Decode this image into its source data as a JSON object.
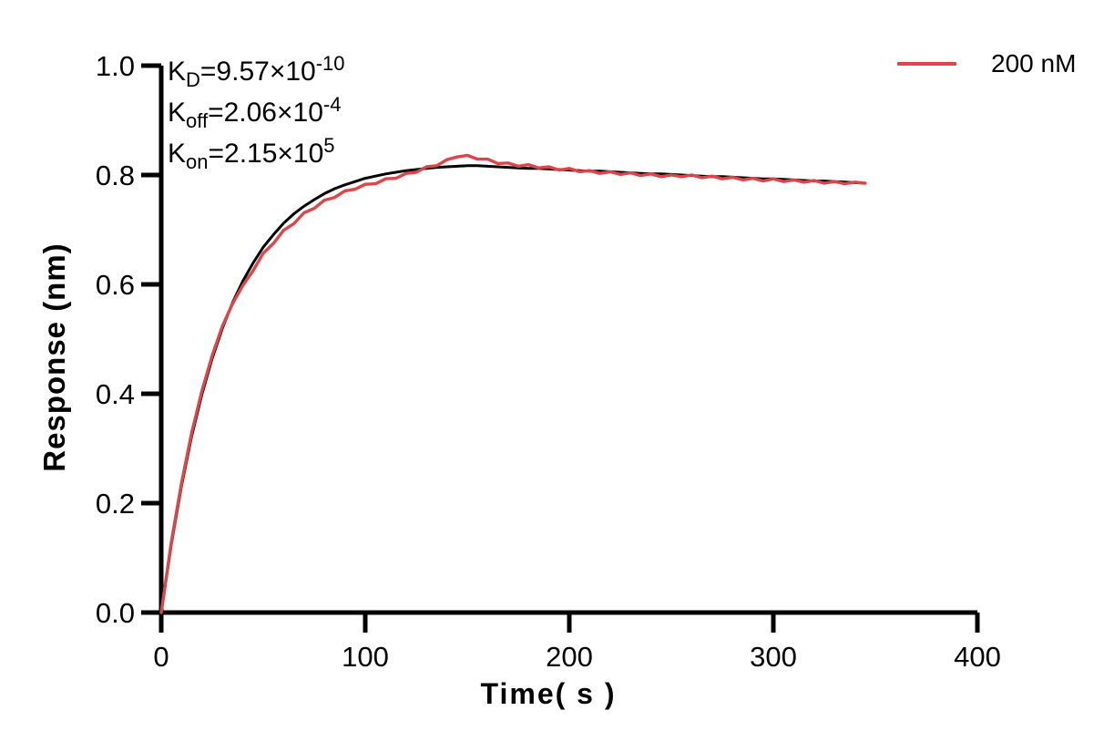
{
  "canvas": {
    "background": "#FFFFFF",
    "axis_color": "#000000"
  },
  "chart_data": {
    "type": "line",
    "title": "",
    "xlabel": "Time( s )",
    "ylabel": "Response (nm)",
    "xlim": [
      0,
      400
    ],
    "ylim": [
      0.0,
      1.0
    ],
    "x_ticks": [
      0,
      100,
      200,
      300,
      400
    ],
    "x_tick_labels": [
      "0",
      "100",
      "200",
      "300",
      "400"
    ],
    "y_ticks": [
      0.0,
      0.2,
      0.4,
      0.6,
      0.8,
      1.0
    ],
    "y_tick_labels": [
      "0.0",
      "0.2",
      "0.4",
      "0.6",
      "0.8",
      "1.0"
    ],
    "grid": false,
    "legend_position": "top-right",
    "annotations": {
      "kd": {
        "base": "K",
        "sub": "D",
        "eq": "=9.57×10",
        "sup": "-10"
      },
      "koff": {
        "base": "K",
        "sub": "off",
        "eq": "=2.06×10",
        "sup": "-4"
      },
      "kon": {
        "base": "K",
        "sub": "on",
        "eq": "=2.15×10",
        "sup": "5"
      }
    },
    "annotation_lines": [
      "KD=9.57×10-10",
      "Koff=2.06×10-4",
      "Kon=2.15×105"
    ],
    "series": [
      {
        "name": "Fitted curve",
        "role": "fit",
        "color": "#000000",
        "in_legend": false,
        "points": [
          [
            0,
            0
          ],
          [
            5,
            0.126
          ],
          [
            10,
            0.233
          ],
          [
            15,
            0.324
          ],
          [
            20,
            0.4
          ],
          [
            25,
            0.465
          ],
          [
            30,
            0.52
          ],
          [
            35,
            0.567
          ],
          [
            40,
            0.606
          ],
          [
            45,
            0.639
          ],
          [
            50,
            0.668
          ],
          [
            55,
            0.691
          ],
          [
            60,
            0.712
          ],
          [
            65,
            0.729
          ],
          [
            70,
            0.743
          ],
          [
            75,
            0.755
          ],
          [
            80,
            0.766
          ],
          [
            85,
            0.775
          ],
          [
            90,
            0.782
          ],
          [
            95,
            0.788
          ],
          [
            100,
            0.794
          ],
          [
            105,
            0.798
          ],
          [
            110,
            0.802
          ],
          [
            115,
            0.805
          ],
          [
            120,
            0.808
          ],
          [
            125,
            0.81
          ],
          [
            130,
            0.812
          ],
          [
            135,
            0.814
          ],
          [
            140,
            0.815
          ],
          [
            145,
            0.816
          ],
          [
            150,
            0.817
          ],
          [
            155,
            0.817
          ],
          [
            160,
            0.816
          ],
          [
            165,
            0.815
          ],
          [
            170,
            0.814
          ],
          [
            175,
            0.813
          ],
          [
            180,
            0.812
          ],
          [
            185,
            0.812
          ],
          [
            190,
            0.811
          ],
          [
            195,
            0.81
          ],
          [
            200,
            0.809
          ],
          [
            205,
            0.808
          ],
          [
            210,
            0.807
          ],
          [
            215,
            0.807
          ],
          [
            220,
            0.806
          ],
          [
            225,
            0.805
          ],
          [
            230,
            0.804
          ],
          [
            235,
            0.803
          ],
          [
            240,
            0.802
          ],
          [
            245,
            0.802
          ],
          [
            250,
            0.801
          ],
          [
            255,
            0.8
          ],
          [
            260,
            0.799
          ],
          [
            265,
            0.798
          ],
          [
            270,
            0.797
          ],
          [
            275,
            0.797
          ],
          [
            280,
            0.796
          ],
          [
            285,
            0.795
          ],
          [
            290,
            0.794
          ],
          [
            295,
            0.793
          ],
          [
            300,
            0.793
          ],
          [
            305,
            0.792
          ],
          [
            310,
            0.791
          ],
          [
            315,
            0.79
          ],
          [
            320,
            0.789
          ],
          [
            325,
            0.789
          ],
          [
            330,
            0.788
          ],
          [
            335,
            0.787
          ],
          [
            340,
            0.786
          ],
          [
            345,
            0.785
          ]
        ]
      },
      {
        "name": "200 nM",
        "role": "measured",
        "color": "#DF4548",
        "in_legend": true,
        "points": [
          [
            0,
            0
          ],
          [
            5,
            0.13
          ],
          [
            10,
            0.238
          ],
          [
            15,
            0.33
          ],
          [
            20,
            0.406
          ],
          [
            25,
            0.47
          ],
          [
            30,
            0.524
          ],
          [
            35,
            0.565
          ],
          [
            40,
            0.598
          ],
          [
            45,
            0.625
          ],
          [
            50,
            0.657
          ],
          [
            55,
            0.675
          ],
          [
            60,
            0.699
          ],
          [
            65,
            0.711
          ],
          [
            70,
            0.731
          ],
          [
            75,
            0.739
          ],
          [
            80,
            0.754
          ],
          [
            85,
            0.759
          ],
          [
            90,
            0.771
          ],
          [
            95,
            0.774
          ],
          [
            100,
            0.783
          ],
          [
            105,
            0.784
          ],
          [
            110,
            0.793
          ],
          [
            115,
            0.794
          ],
          [
            120,
            0.803
          ],
          [
            125,
            0.805
          ],
          [
            130,
            0.815
          ],
          [
            135,
            0.817
          ],
          [
            140,
            0.828
          ],
          [
            145,
            0.833
          ],
          [
            150,
            0.836
          ],
          [
            155,
            0.829
          ],
          [
            160,
            0.829
          ],
          [
            165,
            0.821
          ],
          [
            170,
            0.822
          ],
          [
            175,
            0.816
          ],
          [
            180,
            0.819
          ],
          [
            185,
            0.813
          ],
          [
            190,
            0.815
          ],
          [
            195,
            0.809
          ],
          [
            200,
            0.812
          ],
          [
            205,
            0.806
          ],
          [
            210,
            0.808
          ],
          [
            215,
            0.803
          ],
          [
            220,
            0.806
          ],
          [
            225,
            0.801
          ],
          [
            230,
            0.804
          ],
          [
            235,
            0.799
          ],
          [
            240,
            0.802
          ],
          [
            245,
            0.797
          ],
          [
            250,
            0.8
          ],
          [
            255,
            0.797
          ],
          [
            260,
            0.8
          ],
          [
            265,
            0.795
          ],
          [
            270,
            0.798
          ],
          [
            275,
            0.793
          ],
          [
            280,
            0.796
          ],
          [
            285,
            0.791
          ],
          [
            290,
            0.794
          ],
          [
            295,
            0.789
          ],
          [
            300,
            0.793
          ],
          [
            305,
            0.788
          ],
          [
            310,
            0.791
          ],
          [
            315,
            0.787
          ],
          [
            320,
            0.79
          ],
          [
            325,
            0.785
          ],
          [
            330,
            0.788
          ],
          [
            335,
            0.784
          ],
          [
            340,
            0.787
          ],
          [
            345,
            0.785
          ]
        ]
      }
    ]
  },
  "legend": {
    "entries": [
      {
        "label": "200 nM",
        "color": "#DF4548"
      }
    ]
  }
}
